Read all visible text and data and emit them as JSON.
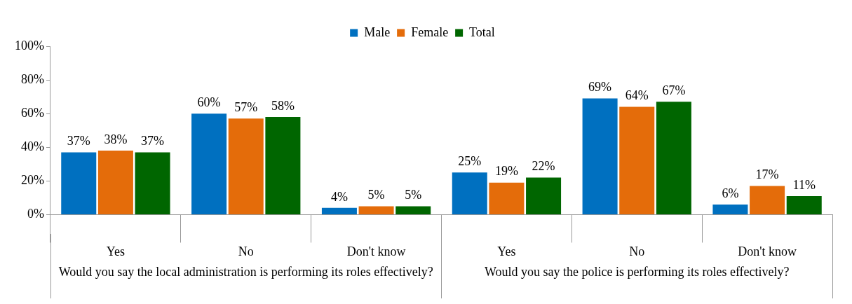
{
  "chart_data": {
    "type": "bar",
    "categories": [
      "Yes",
      "No",
      "Don't know",
      "Yes",
      "No",
      "Don't know"
    ],
    "series": [
      {
        "name": "Male",
        "color": "#0070c0",
        "values": [
          37,
          60,
          4,
          25,
          69,
          6
        ],
        "value_labels": [
          "37%",
          "60%",
          "4%",
          "25%",
          "69%",
          "6%"
        ]
      },
      {
        "name": "Female",
        "color": "#e46c0a",
        "values": [
          38,
          57,
          5,
          19,
          64,
          17
        ],
        "value_labels": [
          "38%",
          "57%",
          "5%",
          "19%",
          "64%",
          "17%"
        ]
      },
      {
        "name": "Total",
        "color": "#006600",
        "values": [
          37,
          58,
          5,
          22,
          67,
          11
        ],
        "value_labels": [
          "37%",
          "58%",
          "5%",
          "22%",
          "67%",
          "11%"
        ]
      }
    ],
    "ylim": [
      0,
      100
    ],
    "yticks": [
      {
        "value": 0,
        "label": "0%"
      },
      {
        "value": 20,
        "label": "20%"
      },
      {
        "value": 40,
        "label": "40%"
      },
      {
        "value": 60,
        "label": "60%"
      },
      {
        "value": 80,
        "label": "80%"
      },
      {
        "value": 100,
        "label": "100%"
      }
    ],
    "grid": false,
    "legend": "top",
    "annotations": [
      "Would you say the local administration is performing its roles effectively?",
      "Would you say the police is performing its roles effectively?"
    ]
  }
}
